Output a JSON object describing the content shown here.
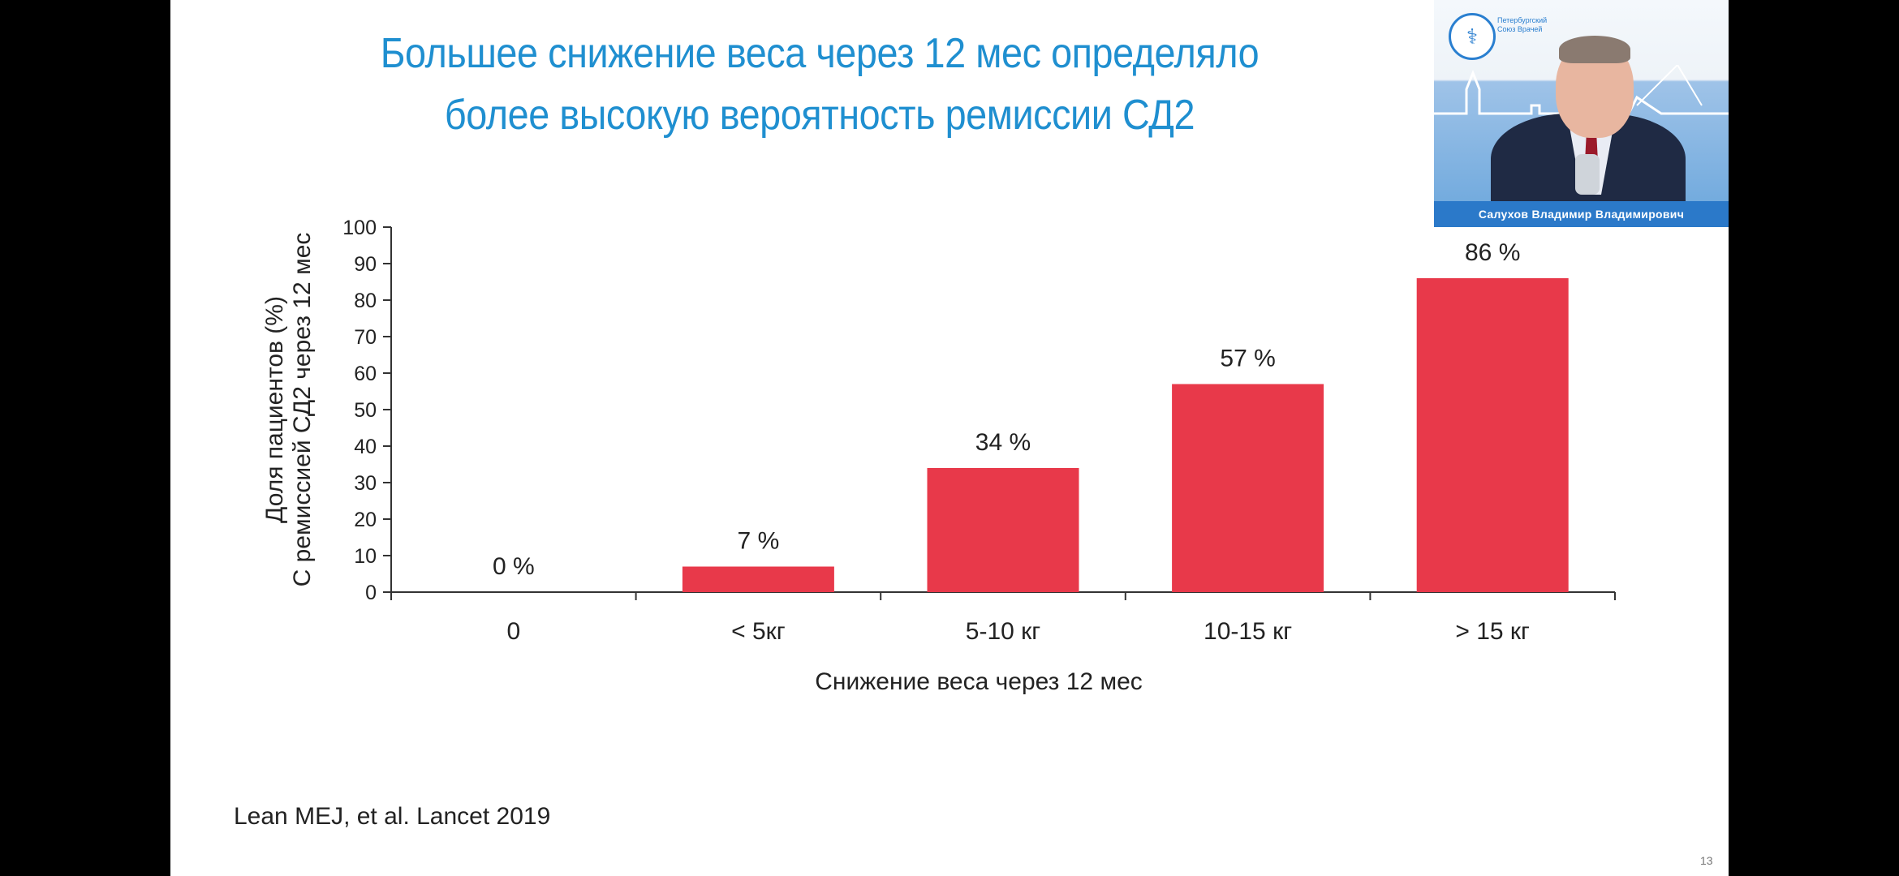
{
  "slide": {
    "title_line1": "Большее снижение веса через 12 мес определяло",
    "title_line2": "более высокую вероятность ремиссии СД2",
    "citation": "Lean MEJ, et al. Lancet 2019",
    "page_number": "13"
  },
  "video": {
    "speaker_name": "Салухов Владимир Владимирович",
    "logo_glyph": "⚕",
    "logo_text": "Петербургский Союз Врачей"
  },
  "colors": {
    "bar": "#e8394a",
    "title": "#1f8fd0"
  },
  "chart_data": {
    "type": "bar",
    "title": "",
    "xlabel": "Снижение веса через 12 мес",
    "ylabel_line1": "Доля пациентов (%)",
    "ylabel_line2": "С ремиссией  СД2 через 12 мес",
    "ylim": [
      0,
      100
    ],
    "yticks": [
      0,
      10,
      20,
      30,
      40,
      50,
      60,
      70,
      80,
      90,
      100
    ],
    "categories": [
      "0",
      "< 5кг",
      "5-10 кг",
      "10-15 кг",
      "> 15 кг"
    ],
    "values": [
      0,
      7,
      34,
      57,
      86
    ],
    "data_labels": [
      "0 %",
      "7 %",
      "34 %",
      "57 %",
      "86 %"
    ],
    "grid": false,
    "legend": "none"
  }
}
